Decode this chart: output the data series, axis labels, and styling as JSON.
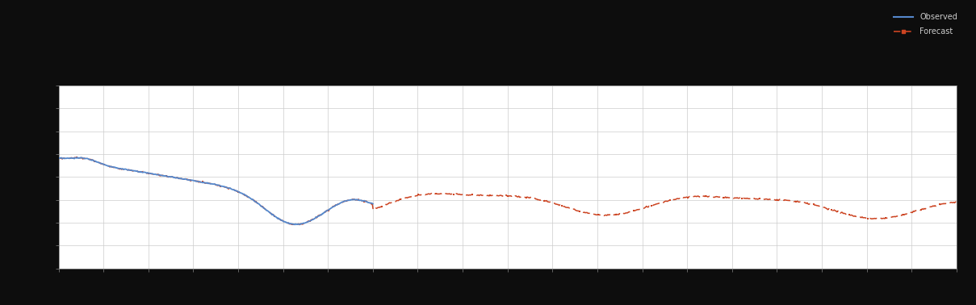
{
  "outer_bg_color": "#0d0d0d",
  "plot_bg_color": "#ffffff",
  "grid_color": "#cccccc",
  "spine_color": "#888888",
  "line1_color": "#5588cc",
  "line2_color": "#cc4422",
  "line1_label": "Observed",
  "line2_label": "Forecast",
  "figsize": [
    12.09,
    3.78
  ],
  "dpi": 100,
  "xlim": [
    0,
    100
  ],
  "ylim": [
    0,
    10
  ],
  "grid_nx": 20,
  "grid_ny": 8,
  "legend_fontsize": 7,
  "tick_labelsize": 6,
  "line1_lw": 1.3,
  "line2_lw": 1.1
}
